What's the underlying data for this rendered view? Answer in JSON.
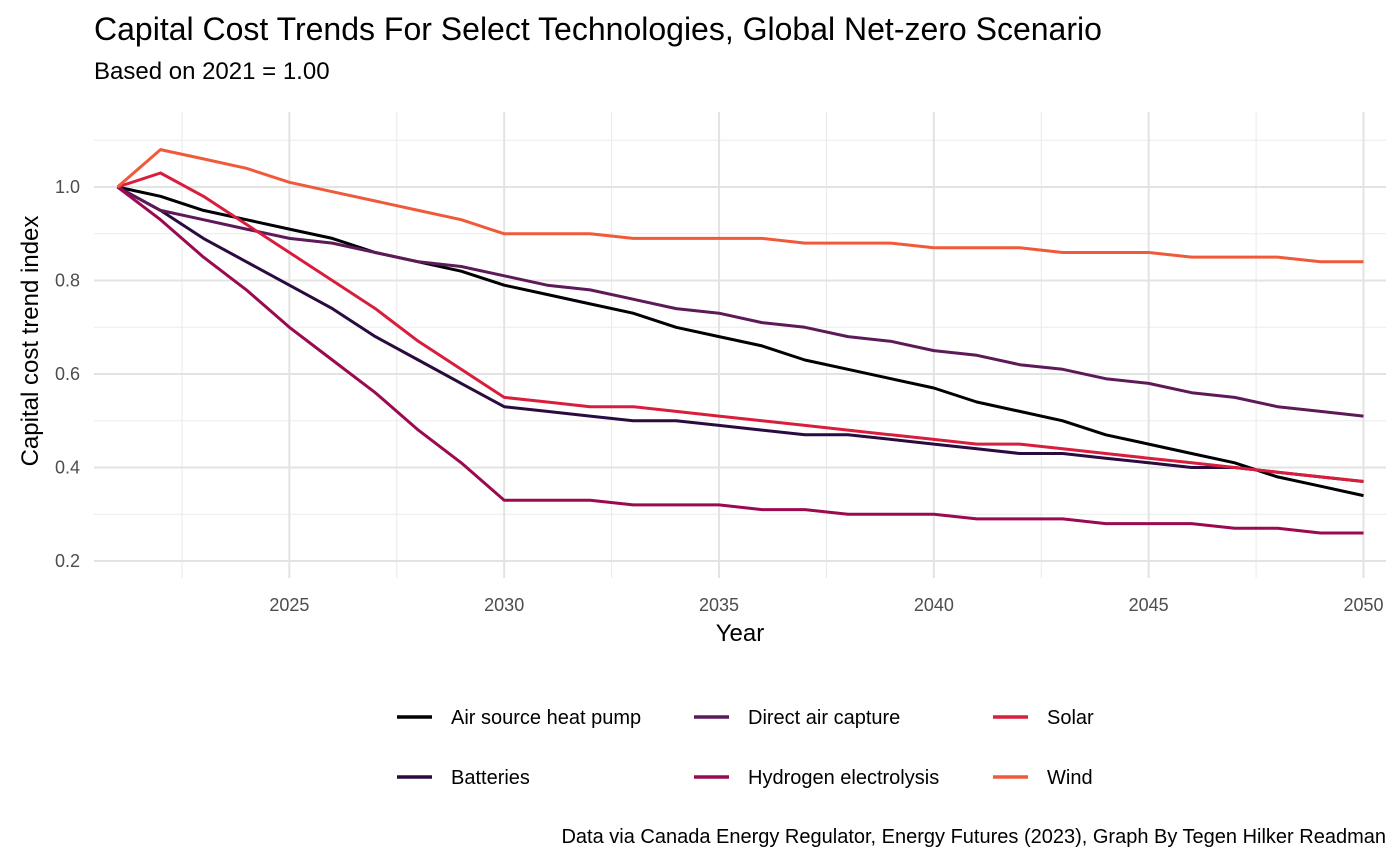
{
  "chart_data": {
    "type": "line",
    "title": "Capital Cost Trends For Select Technologies, Global Net-zero Scenario",
    "subtitle": "Based on 2021 = 1.00",
    "caption": "Data via Canada Energy Regulator, Energy Futures (2023), Graph By Tegen Hilker Readman",
    "xlabel": "Year",
    "ylabel": "Capital cost trend index",
    "xlim": [
      2021,
      2050
    ],
    "ylim": [
      0.2,
      1.1
    ],
    "x_ticks": [
      2025,
      2030,
      2035,
      2040,
      2045,
      2050
    ],
    "y_ticks": [
      0.2,
      0.4,
      0.6,
      0.8,
      1.0
    ],
    "y_tick_labels": [
      "0.2",
      "0.4",
      "0.6",
      "0.8",
      "1.0"
    ],
    "grid": true,
    "legend_position": "bottom",
    "x": [
      2021,
      2022,
      2023,
      2024,
      2025,
      2026,
      2027,
      2028,
      2029,
      2030,
      2031,
      2032,
      2033,
      2034,
      2035,
      2036,
      2037,
      2038,
      2039,
      2040,
      2041,
      2042,
      2043,
      2044,
      2045,
      2046,
      2047,
      2048,
      2049,
      2050
    ],
    "series": [
      {
        "name": "Air source heat pump",
        "color": "#000004",
        "values": [
          1.0,
          0.98,
          0.95,
          0.93,
          0.91,
          0.89,
          0.86,
          0.84,
          0.82,
          0.79,
          0.77,
          0.75,
          0.73,
          0.7,
          0.68,
          0.66,
          0.63,
          0.61,
          0.59,
          0.57,
          0.54,
          0.52,
          0.5,
          0.47,
          0.45,
          0.43,
          0.41,
          0.38,
          0.36,
          0.34
        ]
      },
      {
        "name": "Batteries",
        "color": "#2a0b3f",
        "values": [
          1.0,
          0.95,
          0.89,
          0.84,
          0.79,
          0.74,
          0.68,
          0.63,
          0.58,
          0.53,
          0.52,
          0.51,
          0.5,
          0.5,
          0.49,
          0.48,
          0.47,
          0.47,
          0.46,
          0.45,
          0.44,
          0.43,
          0.43,
          0.42,
          0.41,
          0.4,
          0.4,
          0.39,
          0.38,
          0.37
        ]
      },
      {
        "name": "Direct air capture",
        "color": "#5c1a59",
        "values": [
          1.0,
          0.95,
          0.93,
          0.91,
          0.89,
          0.88,
          0.86,
          0.84,
          0.83,
          0.81,
          0.79,
          0.78,
          0.76,
          0.74,
          0.73,
          0.71,
          0.7,
          0.68,
          0.67,
          0.65,
          0.64,
          0.62,
          0.61,
          0.59,
          0.58,
          0.56,
          0.55,
          0.53,
          0.52,
          0.51
        ]
      },
      {
        "name": "Hydrogen electrolysis",
        "color": "#9b0a50",
        "values": [
          1.0,
          0.93,
          0.85,
          0.78,
          0.7,
          0.63,
          0.56,
          0.48,
          0.41,
          0.33,
          0.33,
          0.33,
          0.32,
          0.32,
          0.32,
          0.31,
          0.31,
          0.3,
          0.3,
          0.3,
          0.29,
          0.29,
          0.29,
          0.28,
          0.28,
          0.28,
          0.27,
          0.27,
          0.26,
          0.26
        ]
      },
      {
        "name": "Solar",
        "color": "#d81e3c",
        "values": [
          1.0,
          1.03,
          0.98,
          0.92,
          0.86,
          0.8,
          0.74,
          0.67,
          0.61,
          0.55,
          0.54,
          0.53,
          0.53,
          0.52,
          0.51,
          0.5,
          0.49,
          0.48,
          0.47,
          0.46,
          0.45,
          0.45,
          0.44,
          0.43,
          0.42,
          0.41,
          0.4,
          0.39,
          0.38,
          0.37
        ]
      },
      {
        "name": "Wind",
        "color": "#ef5a3a",
        "values": [
          1.0,
          1.08,
          1.06,
          1.04,
          1.01,
          0.99,
          0.97,
          0.95,
          0.93,
          0.9,
          0.9,
          0.9,
          0.89,
          0.89,
          0.89,
          0.89,
          0.88,
          0.88,
          0.88,
          0.87,
          0.87,
          0.87,
          0.86,
          0.86,
          0.86,
          0.85,
          0.85,
          0.85,
          0.84,
          0.84
        ]
      }
    ]
  }
}
